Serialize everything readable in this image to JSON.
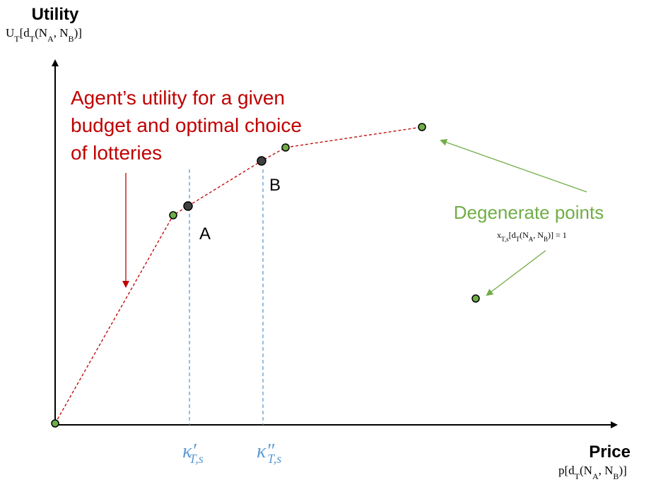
{
  "y_axis": {
    "title": "Utility",
    "formula": [
      "U",
      "T",
      "[d",
      "T",
      "(N",
      "A",
      ", N",
      "B",
      ")]"
    ]
  },
  "x_axis": {
    "title": "Price",
    "formula": [
      "p[d",
      "T",
      "(N",
      "A",
      ", N",
      "B",
      ")]"
    ]
  },
  "curve_annotation": [
    "Agent’s utility for a given",
    "budget and optimal choice",
    "of lotteries"
  ],
  "point_labels": {
    "a": "A",
    "b": "B"
  },
  "degenerate": {
    "label": "Degenerate points",
    "formula": [
      "x",
      "T,s",
      "[d",
      "T",
      "(N",
      "A",
      ", N",
      "B",
      ")] = 1"
    ]
  },
  "thresholds": [
    {
      "symbol": "κ",
      "prime": "′",
      "sub": "T,s"
    },
    {
      "symbol": "κ",
      "prime": "″",
      "sub": "T,s"
    }
  ]
}
